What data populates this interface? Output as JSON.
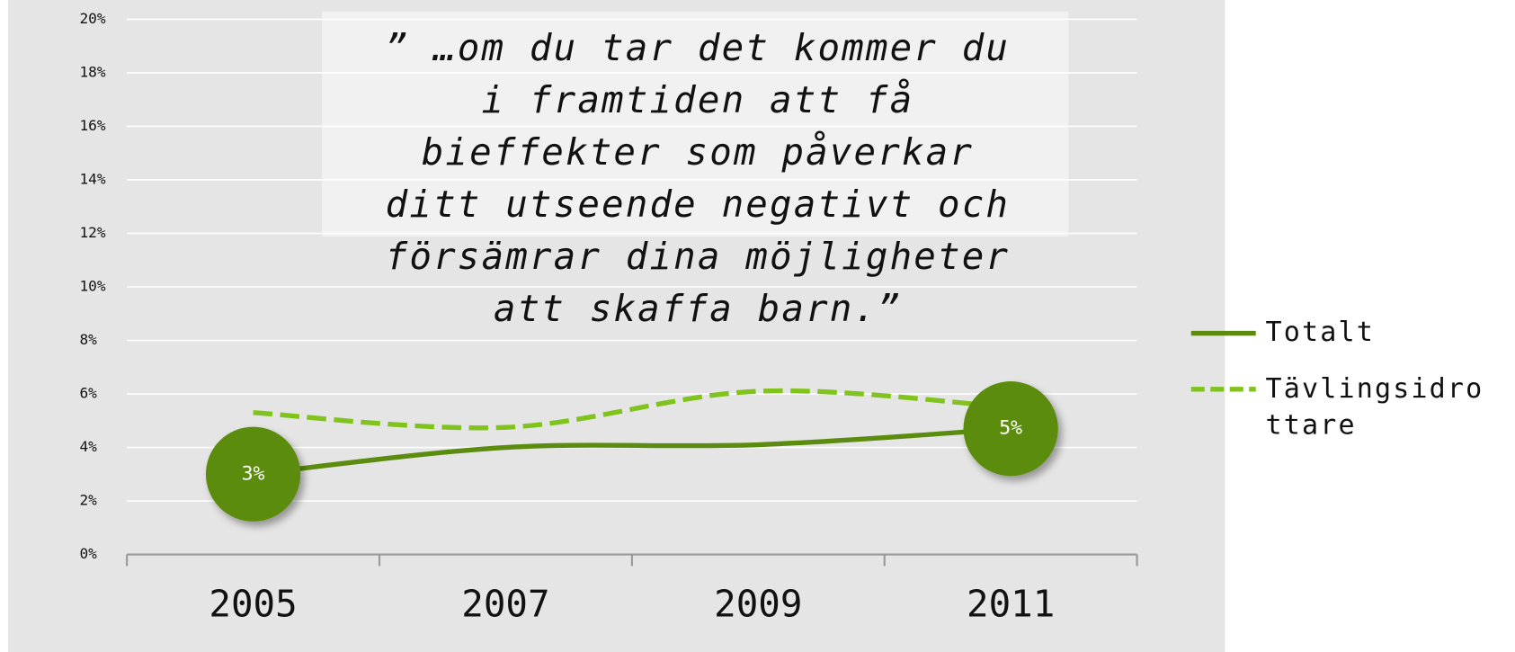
{
  "chart_data": {
    "type": "line",
    "categories": [
      "2005",
      "2007",
      "2009",
      "2011"
    ],
    "series": [
      {
        "name": "Totalt",
        "color": "#5b8c10",
        "dash": false,
        "values": [
          3,
          4,
          4.1,
          4.7
        ],
        "value_labels": [
          "3%",
          null,
          null,
          "5%"
        ]
      },
      {
        "name": "Tävlingsidrottare",
        "color": "#7fc31c",
        "dash": true,
        "values": [
          5.3,
          4.75,
          6.1,
          5.5
        ]
      }
    ],
    "ylim": [
      0,
      20
    ],
    "yticks": [
      {
        "value": 0,
        "label": "0%"
      },
      {
        "value": 2,
        "label": "2%"
      },
      {
        "value": 4,
        "label": "4%"
      },
      {
        "value": 6,
        "label": "6%"
      },
      {
        "value": 8,
        "label": "8%"
      },
      {
        "value": 10,
        "label": "10%"
      },
      {
        "value": 12,
        "label": "12%"
      },
      {
        "value": 14,
        "label": "14%"
      },
      {
        "value": 16,
        "label": "16%"
      },
      {
        "value": 18,
        "label": "18%"
      },
      {
        "value": 20,
        "label": "20%"
      }
    ],
    "grid": true,
    "legend": "right",
    "annotation": [
      "” …om du tar det kommer du",
      "i framtiden att få",
      "bieffekter som påverkar",
      "ditt utseende negativt och",
      "försämrar dina möjligheter",
      "att skaffa barn.”"
    ]
  }
}
